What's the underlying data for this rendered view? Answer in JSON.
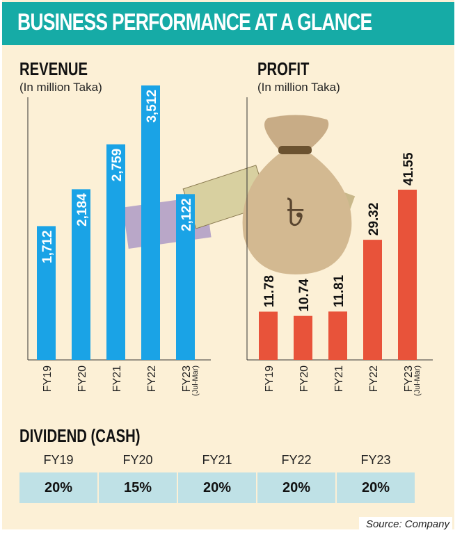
{
  "title": "BUSINESS PERFORMANCE AT A GLANCE",
  "chart_data": [
    {
      "type": "bar",
      "title": "REVENUE",
      "subtitle": "(In million Taka)",
      "categories": [
        "FY19",
        "FY20",
        "FY21",
        "FY22",
        "FY23"
      ],
      "category_notes": [
        "",
        "",
        "",
        "",
        "(Jul-Mar)"
      ],
      "values": [
        1712,
        2184,
        2759,
        3512,
        2122
      ],
      "labels": [
        "1,712",
        "2,184",
        "2,759",
        "3,512",
        "2,122"
      ],
      "color": "#1aa3e6"
    },
    {
      "type": "bar",
      "title": "PROFIT",
      "subtitle": "(In million Taka)",
      "categories": [
        "FY19",
        "FY20",
        "FY21",
        "FY22",
        "FY23"
      ],
      "category_notes": [
        "",
        "",
        "",
        "",
        "(Jul-Mar)"
      ],
      "values": [
        11.78,
        10.74,
        11.81,
        29.32,
        41.55
      ],
      "labels": [
        "11.78",
        "10.74",
        "11.81",
        "29.32",
        "41.55"
      ],
      "color": "#e8533a"
    },
    {
      "type": "table",
      "title": "DIVIDEND (CASH)",
      "categories": [
        "FY19",
        "FY20",
        "FY21",
        "FY22",
        "FY23"
      ],
      "values": [
        "20%",
        "15%",
        "20%",
        "20%",
        "20%"
      ]
    }
  ],
  "source": "Source: Company"
}
